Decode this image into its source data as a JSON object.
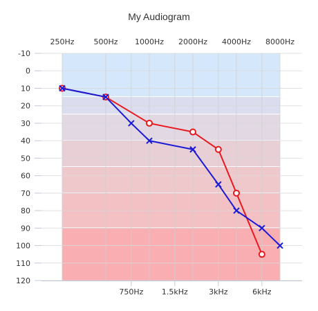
{
  "chart_data": {
    "type": "line",
    "title": "My Audiogram",
    "x_scale": "log",
    "xlim": [
      "250Hz",
      "8000Hz"
    ],
    "ylim": [
      -10,
      120
    ],
    "y_reversed": true,
    "y_ticks": [
      "-10",
      "0",
      "10",
      "20",
      "30",
      "40",
      "50",
      "60",
      "70",
      "80",
      "90",
      "100",
      "110",
      "120"
    ],
    "y_tick_values": [
      -10,
      0,
      10,
      20,
      30,
      40,
      50,
      60,
      70,
      80,
      90,
      100,
      110,
      120
    ],
    "x_top_ticks": [
      "250Hz",
      "500Hz",
      "1000Hz",
      "2000Hz",
      "4000Hz",
      "8000Hz"
    ],
    "x_top_tick_values": [
      250,
      500,
      1000,
      2000,
      4000,
      8000
    ],
    "x_bottom_ticks": [
      "750Hz",
      "1.5kHz",
      "3kHz",
      "6kHz"
    ],
    "x_bottom_tick_values": [
      750,
      1500,
      3000,
      6000
    ],
    "grid": true,
    "bands": [
      {
        "from": -10,
        "to": 15,
        "color": "#d5e8fb"
      },
      {
        "from": 15,
        "to": 25,
        "color": "#dcdcef"
      },
      {
        "from": 25,
        "to": 40,
        "color": "#e2d8e4"
      },
      {
        "from": 40,
        "to": 55,
        "color": "#e8cfd6"
      },
      {
        "from": 55,
        "to": 70,
        "color": "#efc8cc"
      },
      {
        "from": 70,
        "to": 90,
        "color": "#f3c0c3"
      },
      {
        "from": 90,
        "to": 120,
        "color": "#f9afb2"
      }
    ],
    "series": [
      {
        "marker": "circle",
        "color": "#e8191e",
        "x": [
          250,
          500,
          1000,
          2000,
          3000,
          4000,
          6000
        ],
        "values": [
          10,
          15,
          30,
          35,
          45,
          70,
          105
        ]
      },
      {
        "marker": "x",
        "color": "#1a1ad6",
        "x": [
          250,
          500,
          750,
          1000,
          2000,
          3000,
          4000,
          6000,
          8000
        ],
        "values": [
          10,
          15,
          30,
          40,
          45,
          65,
          80,
          90,
          100
        ]
      }
    ]
  }
}
